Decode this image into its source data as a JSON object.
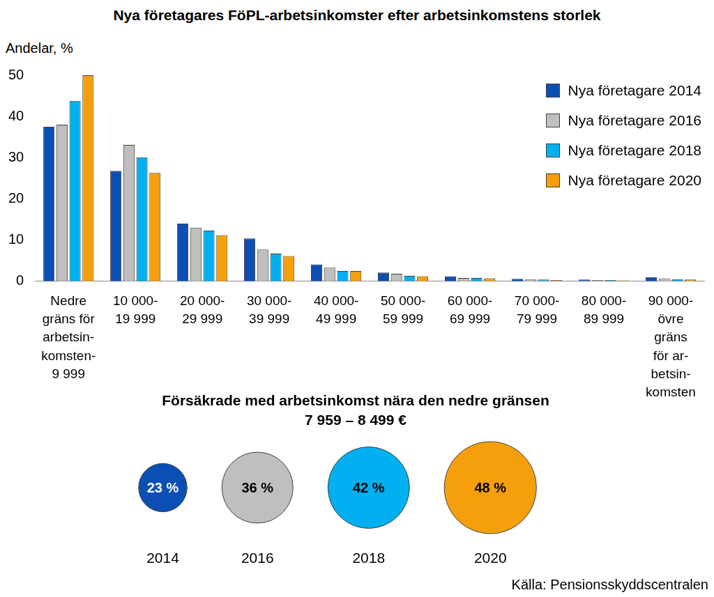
{
  "chart_data": [
    {
      "type": "bar",
      "title": "Nya företagares FöPL-arbetsinkomster efter arbetsinkomstens storlek",
      "ylabel": "Andelar, %",
      "categories": [
        [
          "Nedre",
          "gräns för",
          "arbetsin-",
          "komsten-",
          "9 999"
        ],
        [
          "10 000-",
          "19 999"
        ],
        [
          "20 000-",
          "29 999"
        ],
        [
          "30 000-",
          "39 999"
        ],
        [
          "40 000-",
          "49 999"
        ],
        [
          "50 000-",
          "59 999"
        ],
        [
          "60 000-",
          "69 999"
        ],
        [
          "70 000-",
          "79 999"
        ],
        [
          "80 000-",
          "89 999"
        ],
        [
          "90 000-",
          "övre",
          "gräns",
          "för ar-",
          "betsin-",
          "komsten"
        ]
      ],
      "series": [
        {
          "name": "Nya företagare 2014",
          "color": "#0b4fb5",
          "values": [
            37.5,
            26.8,
            14.0,
            10.4,
            4.1,
            2.1,
            1.2,
            0.6,
            0.4,
            1.0
          ]
        },
        {
          "name": "Nya företagare 2016",
          "color": "#bfbfbf",
          "values": [
            38.0,
            33.1,
            13.0,
            7.7,
            3.3,
            1.8,
            0.8,
            0.4,
            0.3,
            0.7
          ]
        },
        {
          "name": "Nya företagare 2018",
          "color": "#00b0f0",
          "values": [
            43.8,
            30.1,
            12.3,
            6.7,
            2.5,
            1.3,
            0.8,
            0.4,
            0.3,
            0.5
          ]
        },
        {
          "name": "Nya företagare 2020",
          "color": "#f59f0c",
          "values": [
            50.0,
            26.3,
            11.2,
            6.1,
            2.5,
            1.2,
            0.7,
            0.3,
            0.2,
            0.4
          ]
        }
      ],
      "ylim": [
        0,
        50
      ],
      "yticks": [
        0,
        10,
        20,
        30,
        40,
        50
      ],
      "grid": false,
      "legend": "upper right"
    },
    {
      "type": "bubble",
      "title": "Försäkrade med arbetsinkomst nära den nedre gränsen",
      "subtitle": "7 959 – 8 499 €",
      "categories": [
        "2014",
        "2016",
        "2018",
        "2020"
      ],
      "values": [
        23,
        36,
        42,
        48
      ],
      "value_labels": [
        "23 %",
        "36 %",
        "42 %",
        "48 %"
      ],
      "colors": [
        "#0b4fb5",
        "#bfbfbf",
        "#00b0f0",
        "#f59f0c"
      ],
      "data_labels": true
    }
  ],
  "source": "Källa: Pensionsskyddscentralen"
}
